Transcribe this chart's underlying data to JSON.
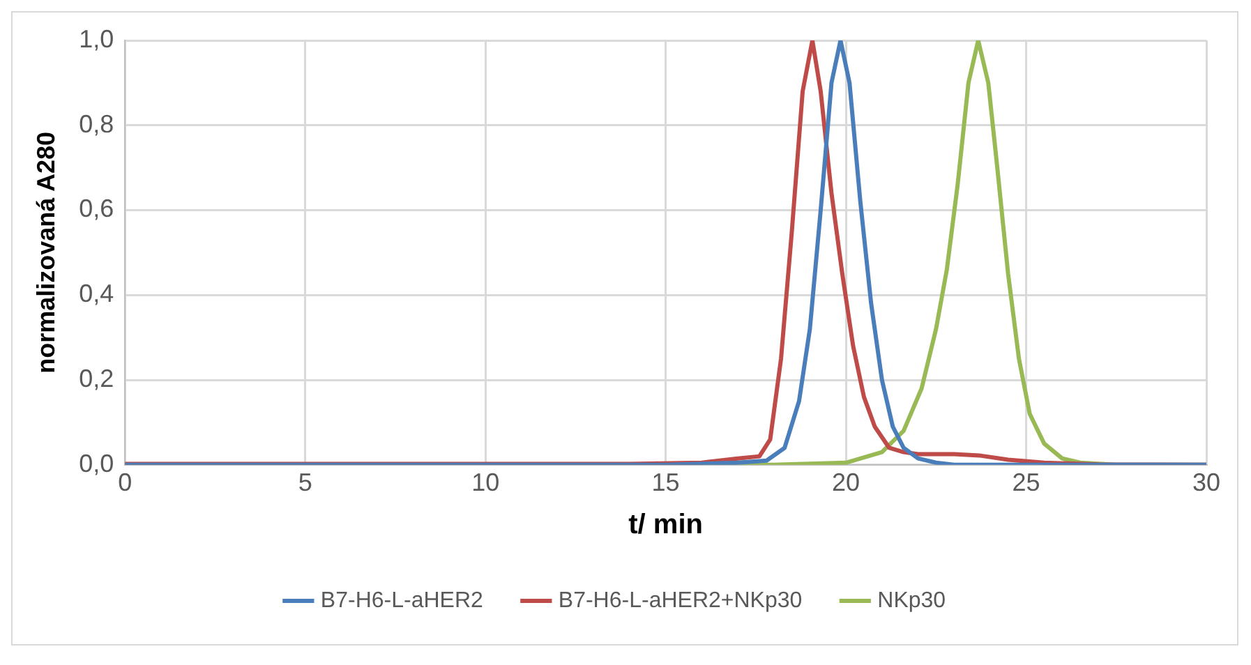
{
  "chart_data": {
    "type": "line",
    "xlabel": "t/ min",
    "ylabel": "normalizovaná A280",
    "xlim": [
      0,
      30
    ],
    "xticks": [
      0,
      5,
      10,
      15,
      20,
      25,
      30
    ],
    "ylim": [
      0,
      1
    ],
    "yticks": [
      {
        "value": 0,
        "label": "0,0"
      },
      {
        "value": 0.2,
        "label": "0,2"
      },
      {
        "value": 0.4,
        "label": "0,4"
      },
      {
        "value": 0.6,
        "label": "0,6"
      },
      {
        "value": 0.8,
        "label": "0,8"
      },
      {
        "value": 1,
        "label": "1,0"
      }
    ],
    "grid": true,
    "legend": "bottom",
    "marker": "none",
    "line_style": "solid",
    "series": [
      {
        "name": "B7-H6-L-aHER2",
        "color": "#4a7ebb",
        "x": [
          0,
          15,
          17,
          17.8,
          18.3,
          18.7,
          19.0,
          19.3,
          19.6,
          19.85,
          20.1,
          20.4,
          20.7,
          21.0,
          21.3,
          21.6,
          22.0,
          22.5,
          23,
          30
        ],
        "values": [
          0,
          0,
          0.005,
          0.01,
          0.04,
          0.15,
          0.32,
          0.6,
          0.9,
          1.0,
          0.9,
          0.62,
          0.38,
          0.2,
          0.09,
          0.04,
          0.015,
          0.005,
          0,
          0
        ]
      },
      {
        "name": "B7-H6-L-aHER2+NKp30",
        "color": "#be4b48",
        "x": [
          0,
          14,
          16,
          17,
          17.6,
          17.9,
          18.2,
          18.5,
          18.8,
          19.07,
          19.3,
          19.6,
          19.9,
          20.2,
          20.5,
          20.8,
          21.2,
          21.6,
          22,
          23,
          23.7,
          24.5,
          25.5,
          27,
          30
        ],
        "values": [
          0.002,
          0.002,
          0.005,
          0.015,
          0.02,
          0.06,
          0.25,
          0.55,
          0.88,
          1.0,
          0.88,
          0.64,
          0.45,
          0.28,
          0.16,
          0.09,
          0.04,
          0.03,
          0.025,
          0.025,
          0.022,
          0.012,
          0.005,
          0.001,
          0
        ]
      },
      {
        "name": "NKp30",
        "color": "#98b954",
        "x": [
          0,
          18,
          20,
          21,
          21.6,
          22.1,
          22.5,
          22.8,
          23.1,
          23.4,
          23.67,
          23.95,
          24.2,
          24.5,
          24.8,
          25.1,
          25.5,
          26,
          26.5,
          27.5,
          30
        ],
        "values": [
          0,
          0,
          0.005,
          0.03,
          0.08,
          0.18,
          0.32,
          0.46,
          0.66,
          0.9,
          1.0,
          0.9,
          0.7,
          0.45,
          0.25,
          0.12,
          0.05,
          0.015,
          0.005,
          0,
          0
        ]
      }
    ]
  }
}
